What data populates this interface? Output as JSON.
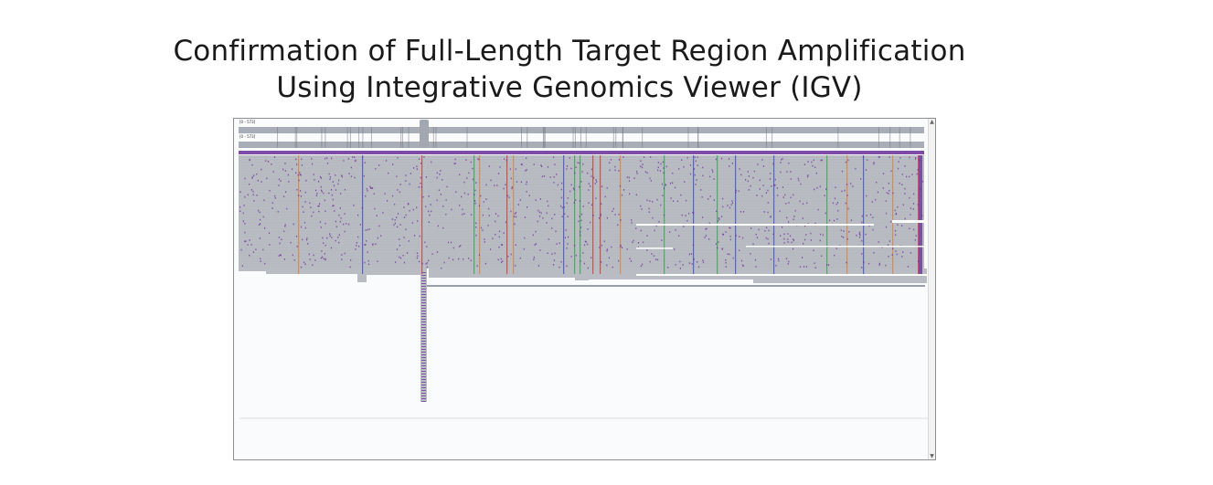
{
  "title": {
    "line1": "Confirmation of Full-Length Target Region Amplification",
    "line2": "Using Integrative Genomics Viewer (IGV)"
  },
  "igv": {
    "coverage_track_1_label": "[0 - 573]",
    "coverage_track_2_label": "[0 - 573]",
    "scroll_up_glyph": "▲",
    "scroll_down_glyph": "▼"
  },
  "colors": {
    "read_gray": "#b9bcc3",
    "coverage_gray": "#a9adb5",
    "insertion_purple": "#6a2a9a",
    "mismatch_green": "#2fa84a",
    "mismatch_orange": "#d9823a",
    "mismatch_red": "#c93b2e",
    "mismatch_blue": "#3b4fc9"
  }
}
